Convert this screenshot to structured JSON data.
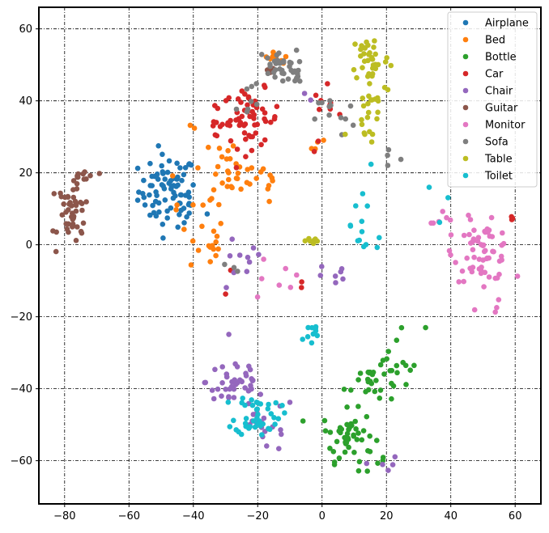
{
  "chart_data": {
    "type": "scatter",
    "title": "",
    "xlabel": "",
    "ylabel": "",
    "xlim": [
      -88,
      68
    ],
    "ylim": [
      -72,
      66
    ],
    "xticks": [
      -80,
      -60,
      -40,
      -20,
      0,
      20,
      40,
      60
    ],
    "yticks": [
      -60,
      -40,
      -20,
      0,
      20,
      40,
      60
    ],
    "grid": true,
    "legend_position": "top-right",
    "series": [
      {
        "name": "Airplane",
        "color": "#1f77b4",
        "clusters": [
          {
            "cx": -48,
            "cy": 15,
            "sx": 4.5,
            "sy": 5.0,
            "n": 75
          },
          {
            "cx": -41,
            "cy": 10,
            "sx": 2.5,
            "sy": 2.5,
            "n": 8
          }
        ]
      },
      {
        "name": "Bed",
        "color": "#ff7f0e",
        "clusters": [
          {
            "cx": -15,
            "cy": 51,
            "sx": 2.5,
            "sy": 1.5,
            "n": 10
          },
          {
            "cx": -27,
            "cy": 19,
            "sx": 3.5,
            "sy": 2.5,
            "n": 22
          },
          {
            "cx": -36,
            "cy": 0,
            "sx": 3.0,
            "sy": 4.0,
            "n": 15
          },
          {
            "cx": -38,
            "cy": 22,
            "sx": 8,
            "sy": 10,
            "n": 18
          },
          {
            "cx": -16,
            "cy": 17,
            "sx": 3,
            "sy": 4,
            "n": 8
          },
          {
            "cx": 0,
            "cy": 28,
            "sx": 1.5,
            "sy": 1.5,
            "n": 4
          }
        ]
      },
      {
        "name": "Bottle",
        "color": "#2ca02c",
        "clusters": [
          {
            "cx": 8,
            "cy": -53,
            "sx": 4,
            "sy": 3.5,
            "n": 45
          },
          {
            "cx": 15,
            "cy": -38,
            "sx": 4,
            "sy": 3,
            "n": 25
          },
          {
            "cx": 24,
            "cy": -30,
            "sx": 4,
            "sy": 4,
            "n": 14
          },
          {
            "cx": 14,
            "cy": -60,
            "sx": 3,
            "sy": 3,
            "n": 6
          }
        ]
      },
      {
        "name": "Car",
        "color": "#d62728",
        "clusters": [
          {
            "cx": -22,
            "cy": 35,
            "sx": 4.5,
            "sy": 4.0,
            "n": 55
          },
          {
            "cx": -34,
            "cy": 34,
            "sx": 2.5,
            "sy": 2.0,
            "n": 10
          },
          {
            "cx": 1,
            "cy": 35,
            "sx": 2.5,
            "sy": 5,
            "n": 10
          },
          {
            "cx": 59,
            "cy": 7,
            "sx": 1,
            "sy": 0.5,
            "n": 3
          },
          {
            "cx": -28,
            "cy": -10,
            "sx": 1,
            "sy": 2,
            "n": 2
          },
          {
            "cx": -6,
            "cy": -11,
            "sx": 1,
            "sy": 1,
            "n": 2
          }
        ]
      },
      {
        "name": "Chair",
        "color": "#9467bd",
        "clusters": [
          {
            "cx": -27,
            "cy": -38,
            "sx": 4.5,
            "sy": 4.0,
            "n": 40
          },
          {
            "cx": -18,
            "cy": -50,
            "sx": 5,
            "sy": 4,
            "n": 20
          },
          {
            "cx": -26,
            "cy": -6,
            "sx": 4,
            "sy": 4,
            "n": 10
          },
          {
            "cx": 4,
            "cy": -9,
            "sx": 3,
            "sy": 2,
            "n": 7
          },
          {
            "cx": 17,
            "cy": -62,
            "sx": 4,
            "sy": 2,
            "n": 5
          },
          {
            "cx": -5,
            "cy": 41,
            "sx": 1,
            "sy": 0.5,
            "n": 2
          }
        ]
      },
      {
        "name": "Guitar",
        "color": "#8c564b",
        "clusters": [
          {
            "cx": -77,
            "cy": 7,
            "sx": 2.5,
            "sy": 3.5,
            "n": 35
          },
          {
            "cx": -74,
            "cy": 19,
            "sx": 2.0,
            "sy": 1.2,
            "n": 12
          },
          {
            "cx": -79,
            "cy": 13,
            "sx": 1.5,
            "sy": 1.2,
            "n": 10
          },
          {
            "cx": -16,
            "cy": 49,
            "sx": 1,
            "sy": 0.8,
            "n": 4
          }
        ]
      },
      {
        "name": "Monitor",
        "color": "#e377c2",
        "clusters": [
          {
            "cx": 50,
            "cy": -2,
            "sx": 4.5,
            "sy": 4.0,
            "n": 60
          },
          {
            "cx": 36,
            "cy": 5,
            "sx": 3,
            "sy": 4,
            "n": 8
          },
          {
            "cx": -15,
            "cy": -10,
            "sx": 6,
            "sy": 4,
            "n": 7
          },
          {
            "cx": 55,
            "cy": -17,
            "sx": 1,
            "sy": 1,
            "n": 3
          }
        ]
      },
      {
        "name": "Sofa",
        "color": "#7f7f7f",
        "clusters": [
          {
            "cx": -14,
            "cy": 50,
            "sx": 3,
            "sy": 2,
            "n": 30
          },
          {
            "cx": -8,
            "cy": 46,
            "sx": 1.2,
            "sy": 1.5,
            "n": 8
          },
          {
            "cx": 4,
            "cy": 36,
            "sx": 3,
            "sy": 3,
            "n": 12
          },
          {
            "cx": -22,
            "cy": 38,
            "sx": 5,
            "sy": 6,
            "n": 8
          },
          {
            "cx": 21,
            "cy": 25,
            "sx": 2,
            "sy": 3,
            "n": 4
          },
          {
            "cx": -27,
            "cy": -8,
            "sx": 3,
            "sy": 3,
            "n": 3
          }
        ]
      },
      {
        "name": "Table",
        "color": "#bcbd22",
        "clusters": [
          {
            "cx": 15,
            "cy": 52,
            "sx": 3,
            "sy": 3.5,
            "n": 35
          },
          {
            "cx": 16,
            "cy": 40,
            "sx": 3,
            "sy": 4,
            "n": 20
          },
          {
            "cx": -3,
            "cy": 1,
            "sx": 1.2,
            "sy": 1,
            "n": 8
          },
          {
            "cx": 13,
            "cy": 30,
            "sx": 2,
            "sy": 3,
            "n": 6
          }
        ]
      },
      {
        "name": "Toilet",
        "color": "#17becf",
        "clusters": [
          {
            "cx": -20,
            "cy": -47,
            "sx": 3.5,
            "sy": 3.0,
            "n": 45
          },
          {
            "cx": -4,
            "cy": -25,
            "sx": 2.0,
            "sy": 2.0,
            "n": 10
          },
          {
            "cx": 12,
            "cy": 6,
            "sx": 5,
            "sy": 7,
            "n": 14
          },
          {
            "cx": 33,
            "cy": 12,
            "sx": 3,
            "sy": 3,
            "n": 3
          }
        ]
      }
    ]
  }
}
